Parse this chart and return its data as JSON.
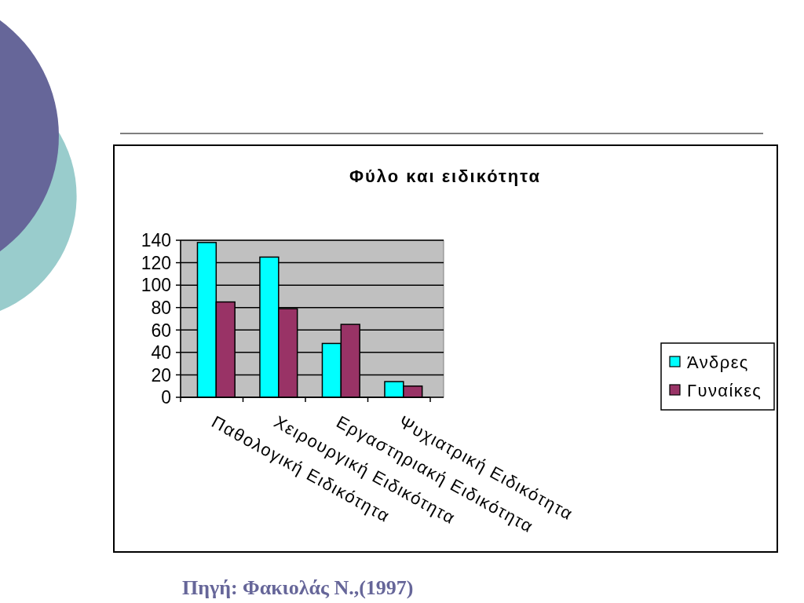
{
  "chart_data": {
    "type": "bar",
    "title": "Φύλο και ειδικότητα",
    "categories": [
      "Παθολογική Ειδικότητα",
      "Χειρουργική Ειδικότητα",
      "Εργαστηριακή Ειδικότητα",
      "Ψυχιατρική Ειδικότητα"
    ],
    "series": [
      {
        "name": "Άνδρες",
        "color": "#00ffff",
        "values": [
          138,
          125,
          48,
          14
        ]
      },
      {
        "name": "Γυναίκες",
        "color": "#993366",
        "values": [
          85,
          79,
          65,
          10
        ]
      }
    ],
    "ylim": [
      0,
      140
    ],
    "yticks": [
      0,
      20,
      40,
      60,
      80,
      100,
      120,
      140
    ],
    "grid": "y",
    "legend": "right",
    "annotations": [
      "Πηγή: Φακιολάς Ν.,(1997)"
    ]
  }
}
